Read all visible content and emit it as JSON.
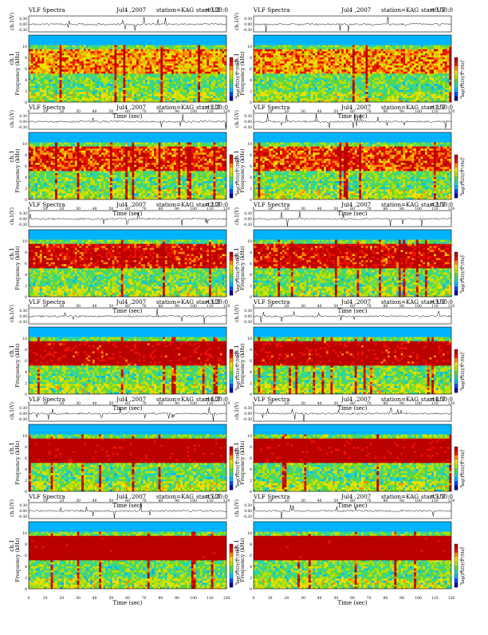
{
  "page": {
    "background": "#ffffff"
  },
  "chart_data": {
    "type": "heatmap",
    "common": {
      "title_left": "VLF Spectra",
      "date": "Jul4 ,2007",
      "station": "station=KAG",
      "start_prefix": "start  UT",
      "xlabel": "Time  (sec)",
      "xticks": [
        0,
        10,
        20,
        30,
        40,
        50,
        60,
        70,
        80,
        90,
        100,
        110,
        120
      ],
      "xlim": [
        0,
        120
      ],
      "ylabel_top": "ch.1",
      "ylabel_freq": "Frequency  (kHz)",
      "yticks": [
        0,
        2,
        4,
        6,
        8,
        10
      ],
      "ylim": [
        0,
        12
      ],
      "ch_ylabel": "ch.1(V)",
      "ch_yticks": [
        "0.30",
        "0.00",
        "-0.30"
      ],
      "colorbar_label": "log(PSD)(V²/Hz)",
      "colorbar_ticks": [
        -2,
        -4,
        -6,
        -8
      ],
      "colormap": [
        "#000099",
        "#0044ff",
        "#00b4ff",
        "#2cd6a8",
        "#5cd640",
        "#b8e000",
        "#f2e000",
        "#ff8800",
        "#ee1100",
        "#bb0000"
      ]
    },
    "panels": [
      {
        "start": "=0:20:0"
      },
      {
        "start": "=0:50:0"
      },
      {
        "start": "=1:20:0"
      },
      {
        "start": "=1:50:0"
      },
      {
        "start": "=2:20:0"
      },
      {
        "start": "=2:50:0"
      },
      {
        "start": "=3:20:0"
      },
      {
        "start": "=3:50:0"
      },
      {
        "start": "=4:20:0"
      },
      {
        "start": "=4:50:0"
      },
      {
        "start": "=5:20:0"
      },
      {
        "start": "=5:50:0"
      }
    ]
  }
}
